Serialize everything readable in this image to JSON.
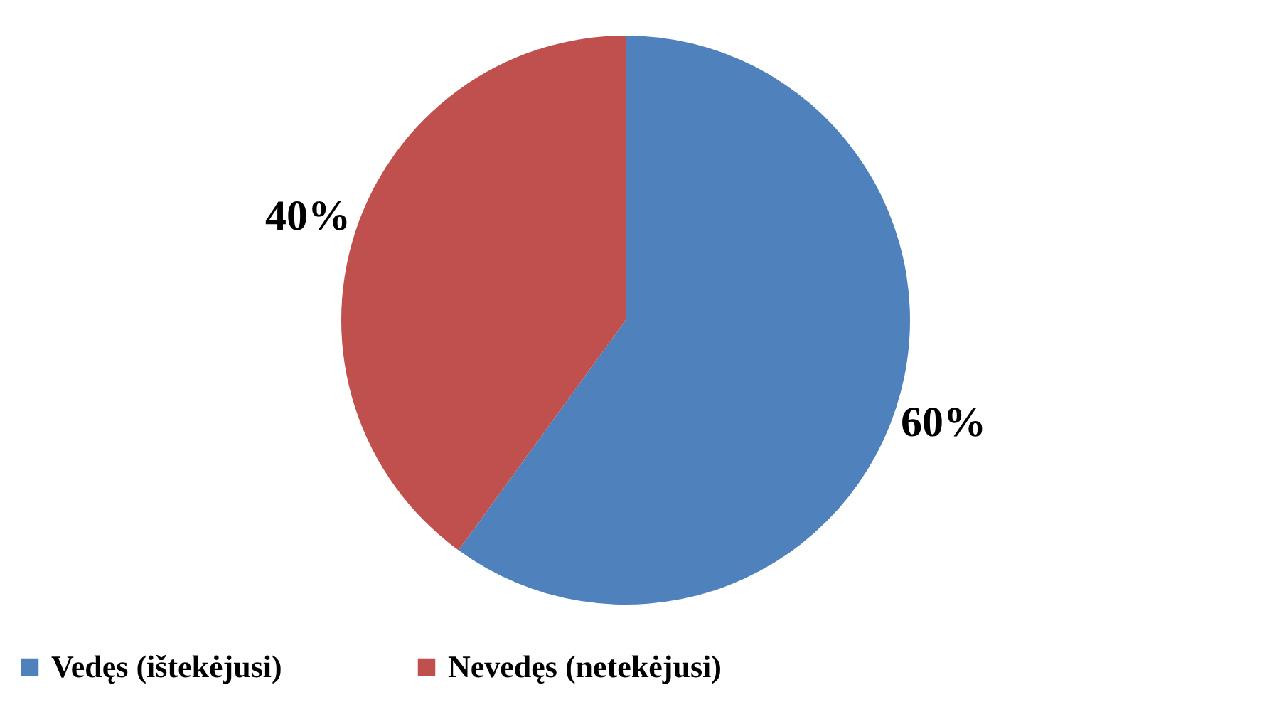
{
  "chart_data": {
    "type": "pie",
    "categories": [
      "Vedęs (ištekėjusi)",
      "Nevedęs (netekėjusi)"
    ],
    "values": [
      60,
      40
    ],
    "colors": [
      "#4f81bd",
      "#c0504d"
    ],
    "value_labels": [
      "60%",
      "40%"
    ],
    "legend": "bottom"
  }
}
